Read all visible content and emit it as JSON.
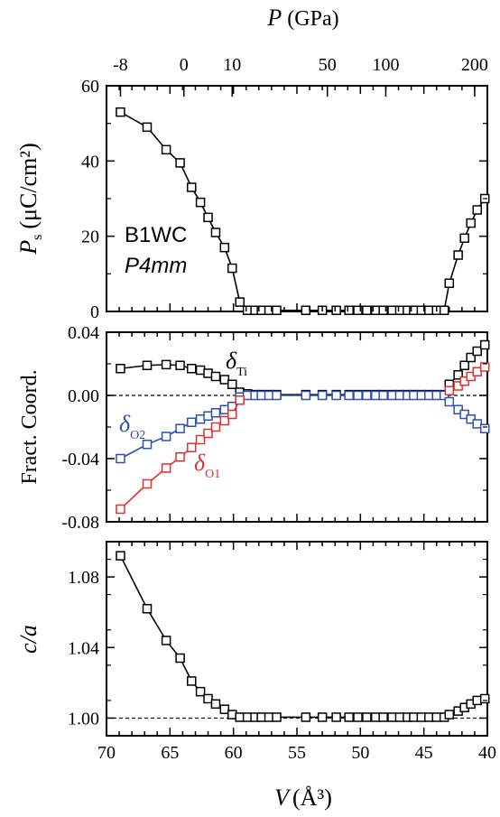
{
  "chart_data": [
    {
      "type": "line",
      "panel": "top",
      "ylabel_main": "P",
      "ylabel_sub": "s",
      "ylabel_unit": "(μC/cm²)",
      "ylim": [
        0,
        60
      ],
      "yticks": [
        "0",
        "20",
        "40",
        "60"
      ],
      "xlim": [
        70,
        40
      ],
      "top_axis_title": "P",
      "top_axis_unit": "(GPa)",
      "top_axis_ticks": [
        {
          "label": "-8",
          "v": 68.9
        },
        {
          "label": "0",
          "v": 63.9
        },
        {
          "label": "10",
          "v": 60.1
        },
        {
          "label": "50",
          "v": 52.6
        },
        {
          "label": "100",
          "v": 48.0
        },
        {
          "label": "200",
          "v": 41.0
        }
      ],
      "annotation_line1": "B1WC",
      "annotation_line2": "P4mm",
      "series": [
        {
          "color": "#000000",
          "x": [
            68.9,
            66.8,
            65.3,
            64.2,
            63.3,
            62.6,
            62.0,
            61.4,
            60.7,
            60.1,
            59.5,
            58.9,
            58.3,
            57.8,
            57.2,
            56.6,
            54.3,
            53.0,
            51.9,
            50.9,
            50.2,
            49.5,
            48.8,
            48.2,
            47.5,
            46.9,
            46.3,
            45.8,
            45.2,
            44.6,
            44.0,
            43.4,
            43.0,
            42.3,
            41.8,
            41.3,
            40.8,
            40.2
          ],
          "y": [
            53,
            49,
            43,
            39.5,
            33,
            29,
            25,
            21,
            17,
            11.5,
            2.5,
            0.3,
            0.3,
            0.3,
            0.3,
            0.3,
            0.3,
            0.3,
            0.3,
            0.3,
            0.3,
            0.3,
            0.3,
            0.3,
            0.3,
            0.3,
            0.3,
            0.3,
            0.3,
            0.3,
            0.3,
            0.3,
            7.5,
            15,
            19.5,
            23.5,
            27,
            30
          ]
        }
      ]
    },
    {
      "type": "line",
      "panel": "middle",
      "ylabel": "Fract. Coord.",
      "ylim": [
        -0.08,
        0.04
      ],
      "yticks": [
        "-0.08",
        "-0.04",
        "0.00",
        "0.04"
      ],
      "xlim": [
        70,
        40
      ],
      "reference_line": 0,
      "series": [
        {
          "name_main": "δ",
          "name_sub": "Ti",
          "color": "#000000",
          "x": [
            68.9,
            66.8,
            65.3,
            64.2,
            63.3,
            62.6,
            62.0,
            61.4,
            60.7,
            60.1,
            59.5,
            58.9,
            58.3,
            57.8,
            57.2,
            56.6,
            54.3,
            53.0,
            51.9,
            50.9,
            50.2,
            49.5,
            48.8,
            48.2,
            47.5,
            46.9,
            46.3,
            45.8,
            45.2,
            44.6,
            44.0,
            43.4,
            43.0,
            42.3,
            41.8,
            41.3,
            40.8,
            40.2
          ],
          "y": [
            0.017,
            0.019,
            0.0195,
            0.019,
            0.017,
            0.016,
            0.014,
            0.012,
            0.01,
            0.007,
            0.002,
            0.001,
            0.0005,
            0.0005,
            0.0005,
            0.0005,
            0.0005,
            0.0005,
            0.0005,
            0.0005,
            0.0005,
            0.0005,
            0.0005,
            0.0005,
            0.0005,
            0.0005,
            0.0005,
            0.0005,
            0.0005,
            0.0005,
            0.0005,
            0.0005,
            0.007,
            0.013,
            0.019,
            0.024,
            0.028,
            0.032
          ]
        },
        {
          "name_main": "δ",
          "name_sub": "O2",
          "color": "#3050b0",
          "x": [
            68.9,
            66.8,
            65.3,
            64.2,
            63.3,
            62.6,
            62.0,
            61.4,
            60.7,
            60.1,
            59.5,
            58.9,
            58.3,
            57.8,
            57.2,
            56.6,
            54.3,
            53.0,
            51.9,
            50.9,
            50.2,
            49.5,
            48.8,
            48.2,
            47.5,
            46.9,
            46.3,
            45.8,
            45.2,
            44.6,
            44.0,
            43.4,
            43.0,
            42.3,
            41.8,
            41.3,
            40.8,
            40.2
          ],
          "y": [
            -0.04,
            -0.031,
            -0.026,
            -0.021,
            -0.017,
            -0.015,
            -0.013,
            -0.011,
            -0.009,
            -0.007,
            -0.001,
            0.0,
            0.0,
            0.0,
            0.0,
            0.0,
            0.0,
            0.0,
            0.0,
            0.0,
            0.0,
            0.0,
            0.0,
            0.0,
            0.0,
            0.0,
            0.0,
            0.0,
            0.0,
            0.0,
            0.0,
            0.0,
            -0.004,
            -0.009,
            -0.012,
            -0.015,
            -0.018,
            -0.021
          ]
        },
        {
          "name_main": "δ",
          "name_sub": "O1",
          "color": "#e03030",
          "x": [
            68.9,
            66.8,
            65.3,
            64.2,
            63.3,
            62.6,
            62.0,
            61.4,
            60.7,
            60.1,
            59.5,
            43.0,
            42.3,
            41.8,
            41.3,
            40.8,
            40.2
          ],
          "y": [
            -0.072,
            -0.056,
            -0.046,
            -0.039,
            -0.033,
            -0.028,
            -0.024,
            -0.02,
            -0.016,
            -0.012,
            -0.003,
            0.003,
            0.006,
            0.009,
            0.012,
            0.015,
            0.018
          ]
        }
      ]
    },
    {
      "type": "line",
      "panel": "bottom",
      "ylabel": "c/a",
      "ylim": [
        0.99,
        1.1
      ],
      "yticks": [
        "1.00",
        "1.04",
        "1.08"
      ],
      "xlim": [
        70,
        40
      ],
      "xticks": [
        "70",
        "65",
        "60",
        "55",
        "50",
        "45",
        "40"
      ],
      "xlabel_main": "V",
      "xlabel_unit": "(Å³)",
      "reference_line": 1.0,
      "series": [
        {
          "color": "#000000",
          "x": [
            68.9,
            66.8,
            65.3,
            64.2,
            63.3,
            62.6,
            62.0,
            61.4,
            60.7,
            60.1,
            59.5,
            58.9,
            58.3,
            57.8,
            57.2,
            56.6,
            54.3,
            53.0,
            51.9,
            50.9,
            50.2,
            49.5,
            48.8,
            48.2,
            47.5,
            46.9,
            46.3,
            45.8,
            45.2,
            44.6,
            44.0,
            43.4,
            43.0,
            42.3,
            41.8,
            41.3,
            40.8,
            40.2
          ],
          "y": [
            1.092,
            1.062,
            1.044,
            1.034,
            1.021,
            1.015,
            1.011,
            1.008,
            1.005,
            1.002,
            1.0005,
            1.0005,
            1.0005,
            1.0005,
            1.0005,
            1.0005,
            1.0005,
            1.0005,
            1.0005,
            1.0005,
            1.0005,
            1.0005,
            1.0005,
            1.0005,
            1.0005,
            1.0005,
            1.0005,
            1.0005,
            1.0005,
            1.0005,
            1.0005,
            1.0005,
            1.002,
            1.004,
            1.006,
            1.008,
            1.01,
            1.011
          ]
        }
      ]
    }
  ]
}
